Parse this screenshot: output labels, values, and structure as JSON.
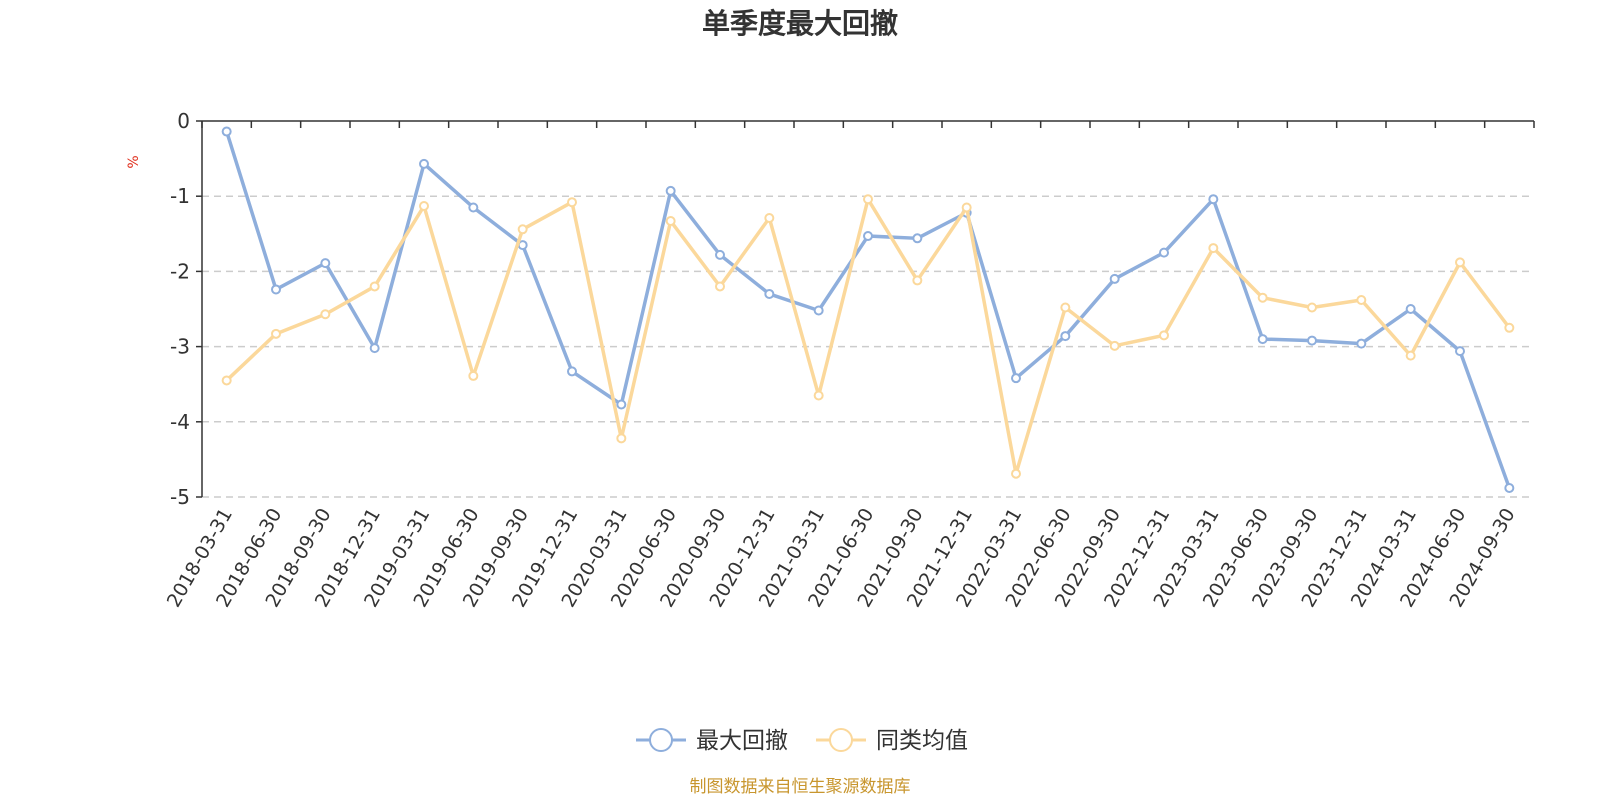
{
  "chart_data": {
    "type": "line",
    "title": "单季度最大回撤",
    "ylabel": "%",
    "ylim": [
      -5,
      0
    ],
    "yticks": [
      0,
      -1,
      -2,
      -3,
      -4,
      -5
    ],
    "grid": true,
    "legend_position": "bottom-center",
    "x": [
      "2018-03-31",
      "2018-06-30",
      "2018-09-30",
      "2018-12-31",
      "2019-03-31",
      "2019-06-30",
      "2019-09-30",
      "2019-12-31",
      "2020-03-31",
      "2020-06-30",
      "2020-09-30",
      "2020-12-31",
      "2021-03-31",
      "2021-06-30",
      "2021-09-30",
      "2021-12-31",
      "2022-03-31",
      "2022-06-30",
      "2022-09-30",
      "2022-12-31",
      "2023-03-31",
      "2023-06-30",
      "2023-09-30",
      "2023-12-31",
      "2024-03-31",
      "2024-06-30",
      "2024-09-30"
    ],
    "series": [
      {
        "name": "最大回撤",
        "color": "#8eaedc",
        "values": [
          -0.14,
          -2.24,
          -1.89,
          -3.02,
          -0.57,
          -1.15,
          -1.65,
          -3.33,
          -3.77,
          -0.93,
          -1.78,
          -2.3,
          -2.52,
          -1.53,
          -1.56,
          -1.22,
          -3.42,
          -2.86,
          -2.1,
          -1.75,
          -1.04,
          -2.9,
          -2.92,
          -2.96,
          -2.5,
          -3.06,
          -4.88
        ]
      },
      {
        "name": "同类均值",
        "color": "#fbd89b",
        "values": [
          -3.45,
          -2.83,
          -2.57,
          -2.2,
          -1.13,
          -3.39,
          -1.44,
          -1.08,
          -4.22,
          -1.33,
          -2.2,
          -1.29,
          -3.65,
          -1.04,
          -2.12,
          -1.15,
          -4.69,
          -2.48,
          -2.99,
          -2.85,
          -1.69,
          -2.35,
          -2.48,
          -2.38,
          -3.12,
          -1.88,
          -2.75
        ]
      }
    ],
    "source": "制图数据来自恒生聚源数据库"
  }
}
